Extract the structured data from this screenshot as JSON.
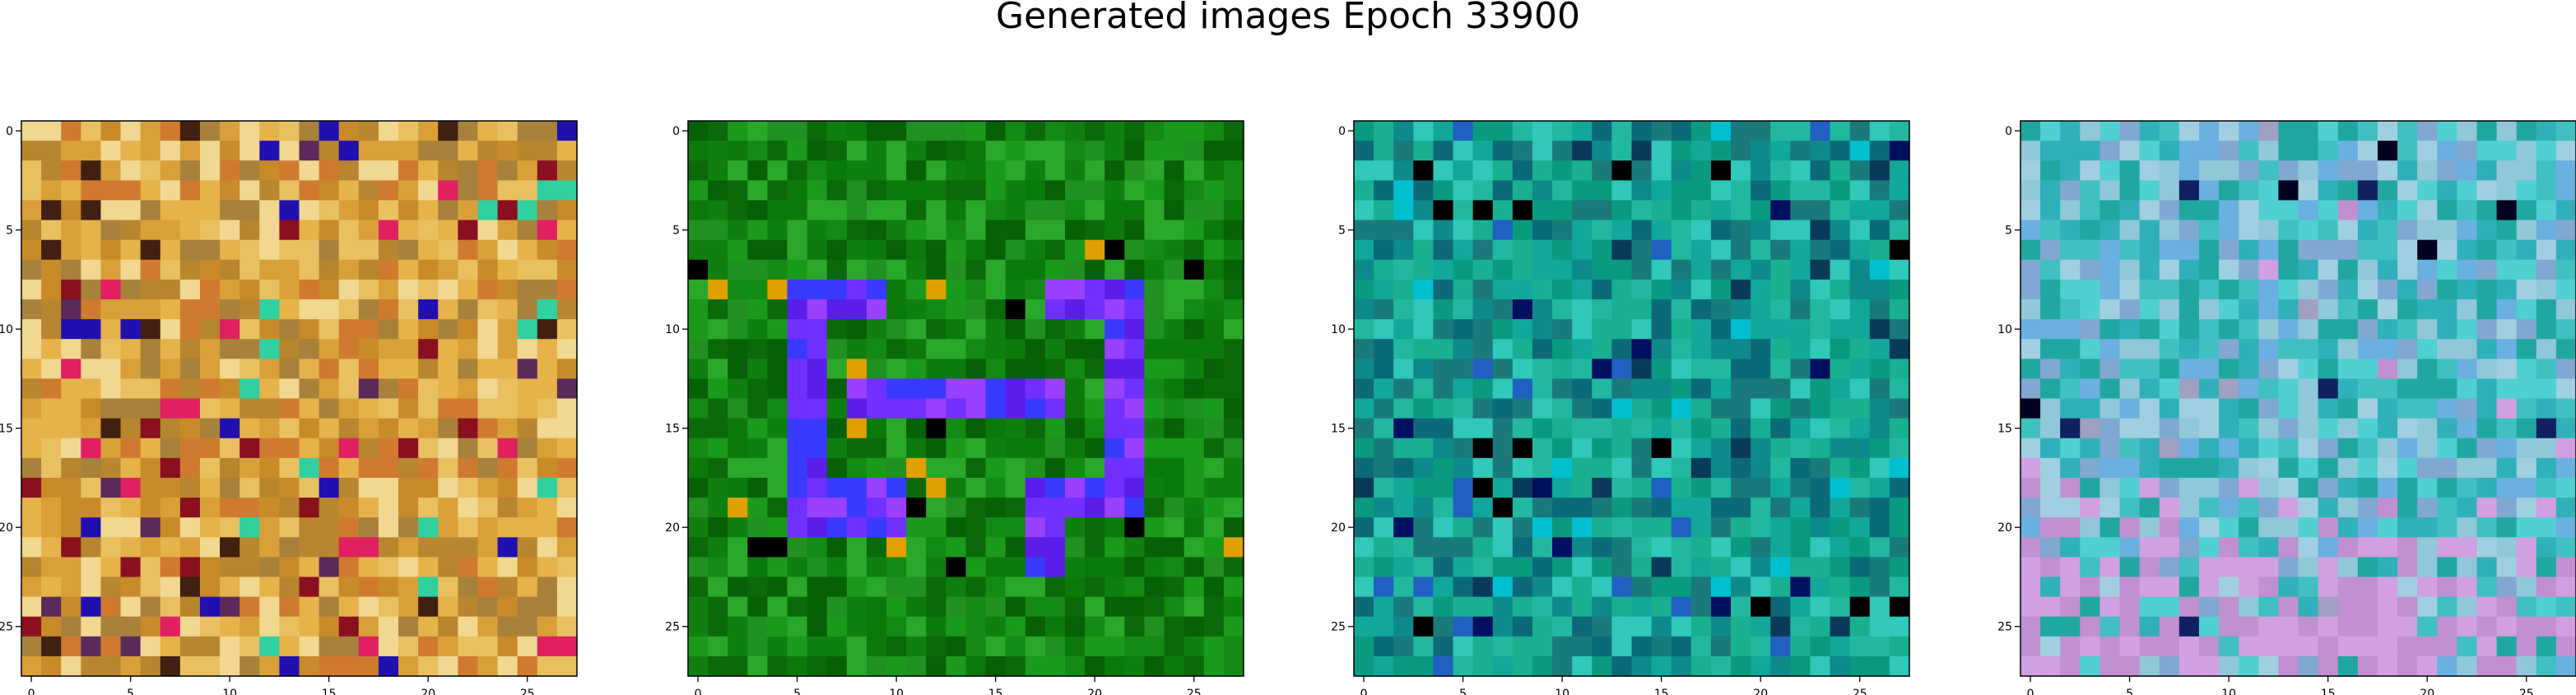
{
  "title": "Generated images Epoch 33900",
  "chart_data": [
    {
      "type": "heatmap",
      "subtype": "image",
      "grid": [
        28,
        28
      ],
      "xticks": [
        0,
        5,
        10,
        15,
        20,
        25
      ],
      "yticks": [
        0,
        5,
        10,
        15,
        20,
        25
      ],
      "xlim": [
        -0.5,
        27.5
      ],
      "ylim": [
        27.5,
        -0.5
      ],
      "grid_lines": false,
      "palette": [
        "#d9a03a",
        "#e8c060",
        "#c98a2a",
        "#e6b24a",
        "#b8862e",
        "#f0d890",
        "#d07a30",
        "#a8823a"
      ],
      "accent_colors": [
        "#8a1020",
        "#5a2a5a",
        "#30d0a0",
        "#2010b0",
        "#e02060",
        "#402010"
      ],
      "pattern": "noise"
    },
    {
      "type": "heatmap",
      "subtype": "image",
      "grid": [
        28,
        28
      ],
      "xticks": [
        0,
        5,
        10,
        15,
        20,
        25
      ],
      "yticks": [
        0,
        5,
        10,
        15,
        20,
        25
      ],
      "xlim": [
        -0.5,
        27.5
      ],
      "ylim": [
        27.5,
        -0.5
      ],
      "grid_lines": false,
      "palette": [
        "#0b7a0b",
        "#138a13",
        "#0a6a0a",
        "#1a9a1a",
        "#066006",
        "#209020",
        "#0f800f",
        "#2aa82a"
      ],
      "accent_colors": [
        "#7030ff",
        "#5a1ee8",
        "#3a3aff",
        "#9a40ff",
        "#000000",
        "#e0a000"
      ],
      "pattern": "glyph"
    },
    {
      "type": "heatmap",
      "subtype": "image",
      "grid": [
        28,
        28
      ],
      "xticks": [
        0,
        5,
        10,
        15,
        20,
        25
      ],
      "yticks": [
        0,
        5,
        10,
        15,
        20,
        25
      ],
      "xlim": [
        -0.5,
        27.5
      ],
      "ylim": [
        27.5,
        -0.5
      ],
      "grid_lines": false,
      "palette": [
        "#11a89a",
        "#0e8a8a",
        "#22b8a0",
        "#0a9a80",
        "#1a7a7a",
        "#30c8b8",
        "#0c6a78",
        "#18b090"
      ],
      "accent_colors": [
        "#001060",
        "#000000",
        "#2060c0",
        "#0a3a5a",
        "#00c0d0"
      ],
      "pattern": "noise"
    },
    {
      "type": "heatmap",
      "subtype": "image",
      "grid": [
        28,
        28
      ],
      "xticks": [
        0,
        5,
        10,
        15,
        20,
        25
      ],
      "yticks": [
        0,
        5,
        10,
        15,
        20,
        25
      ],
      "xlim": [
        -0.5,
        27.5
      ],
      "ylim": [
        27.5,
        -0.5
      ],
      "grid_lines": false,
      "palette": [
        "#40c0c0",
        "#6ab0e0",
        "#20a8a0",
        "#90c8d8",
        "#50d0d0",
        "#80a8d0",
        "#30b0b8",
        "#a0d0e0"
      ],
      "accent_colors": [
        "#000020",
        "#c090d0",
        "#d0a0e0",
        "#102060",
        "#a0a0c0"
      ],
      "pattern": "gradient-pink-bottom"
    }
  ]
}
